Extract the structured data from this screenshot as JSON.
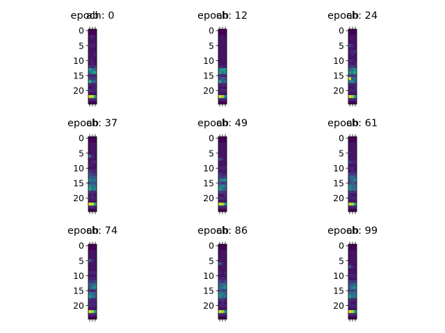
{
  "chart_data": {
    "type": "heatmap",
    "colormap": "viridis",
    "value_range": [
      0,
      1
    ],
    "grid": false,
    "y_ticks": [
      "0",
      "5",
      "10",
      "15",
      "20"
    ],
    "x_tick_count": 3,
    "rows": 25,
    "cols": 3,
    "overlay_label": "ab",
    "panels": [
      {
        "title": "epoch: 0",
        "cells": [
          [
            0,
            0,
            0
          ],
          [
            0,
            0,
            0
          ],
          [
            0.08,
            0.1,
            0.05
          ],
          [
            0.05,
            0.05,
            0.05
          ],
          [
            0.05,
            0.05,
            0.05
          ],
          [
            0.1,
            0.1,
            0.08
          ],
          [
            0.05,
            0.05,
            0.05
          ],
          [
            0.05,
            0.05,
            0.05
          ],
          [
            0.08,
            0.05,
            0.1
          ],
          [
            0.05,
            0.05,
            0.05
          ],
          [
            0.1,
            0.08,
            0.05
          ],
          [
            0.05,
            0.1,
            0.05
          ],
          [
            0.15,
            0.1,
            0.15
          ],
          [
            0.55,
            0.35,
            0.35
          ],
          [
            0.35,
            0.5,
            0.6
          ],
          [
            0.1,
            0.1,
            0.1
          ],
          [
            0.2,
            0.15,
            0.2
          ],
          [
            0.65,
            0.3,
            0.3
          ],
          [
            0.1,
            0.1,
            0.1
          ],
          [
            0.05,
            0.05,
            0.1
          ],
          [
            0.15,
            0.1,
            0.1
          ],
          [
            0.05,
            0.05,
            0.05
          ],
          [
            0.95,
            0.9,
            0.6
          ],
          [
            0.1,
            0.1,
            0.1
          ],
          [
            0,
            0,
            0
          ]
        ]
      },
      {
        "title": "epoch: 12",
        "cells": [
          [
            0,
            0,
            0
          ],
          [
            0,
            0,
            0
          ],
          [
            0.05,
            0.05,
            0.05
          ],
          [
            0.05,
            0.05,
            0.05
          ],
          [
            0.05,
            0.05,
            0.05
          ],
          [
            0.05,
            0.05,
            0.05
          ],
          [
            0.05,
            0.05,
            0.05
          ],
          [
            0.05,
            0.05,
            0.05
          ],
          [
            0.05,
            0.05,
            0.05
          ],
          [
            0.05,
            0.05,
            0.05
          ],
          [
            0.05,
            0.05,
            0.05
          ],
          [
            0.05,
            0.05,
            0.05
          ],
          [
            0.1,
            0.1,
            0.1
          ],
          [
            0.45,
            0.55,
            0.55
          ],
          [
            0.55,
            0.4,
            0.5
          ],
          [
            0.15,
            0.1,
            0.1
          ],
          [
            0.2,
            0.3,
            0.25
          ],
          [
            0.6,
            0.3,
            0.35
          ],
          [
            0.1,
            0.1,
            0.1
          ],
          [
            0.05,
            0.05,
            0.05
          ],
          [
            0.1,
            0.1,
            0.1
          ],
          [
            0.05,
            0.05,
            0.05
          ],
          [
            0.95,
            0.85,
            0.55
          ],
          [
            0.1,
            0.1,
            0.1
          ],
          [
            0,
            0,
            0
          ]
        ]
      },
      {
        "title": "epoch: 24",
        "cells": [
          [
            0,
            0,
            0
          ],
          [
            0,
            0,
            0
          ],
          [
            0.05,
            0.05,
            0.05
          ],
          [
            0.05,
            0.05,
            0.05
          ],
          [
            0.05,
            0.05,
            0.05
          ],
          [
            0.2,
            0.1,
            0.05
          ],
          [
            0.05,
            0.05,
            0.05
          ],
          [
            0.1,
            0.1,
            0.15
          ],
          [
            0.05,
            0.1,
            0.05
          ],
          [
            0.05,
            0.05,
            0.05
          ],
          [
            0.1,
            0.1,
            0.05
          ],
          [
            0.1,
            0.05,
            0.1
          ],
          [
            0.15,
            0.2,
            0.15
          ],
          [
            0.3,
            0.4,
            0.5
          ],
          [
            0.55,
            0.45,
            0.6
          ],
          [
            0.2,
            0.15,
            0.2
          ],
          [
            0.95,
            0.3,
            0.35
          ],
          [
            0.4,
            0.45,
            0.3
          ],
          [
            0.1,
            0.1,
            0.1
          ],
          [
            0.05,
            0.05,
            0.1
          ],
          [
            0.1,
            0.1,
            0.1
          ],
          [
            0.05,
            0.05,
            0.05
          ],
          [
            0.95,
            0.85,
            0.55
          ],
          [
            0.1,
            0.1,
            0.1
          ],
          [
            0,
            0,
            0
          ]
        ]
      },
      {
        "title": "epoch: 37",
        "cells": [
          [
            0,
            0,
            0
          ],
          [
            0,
            0,
            0
          ],
          [
            0.05,
            0.05,
            0.05
          ],
          [
            0.05,
            0.05,
            0.05
          ],
          [
            0.05,
            0.05,
            0.05
          ],
          [
            0.05,
            0.05,
            0.05
          ],
          [
            0.35,
            0.1,
            0.05
          ],
          [
            0.05,
            0.05,
            0.05
          ],
          [
            0.05,
            0.1,
            0.1
          ],
          [
            0.1,
            0.05,
            0.05
          ],
          [
            0.05,
            0.05,
            0.05
          ],
          [
            0.15,
            0.1,
            0.1
          ],
          [
            0.25,
            0.15,
            0.15
          ],
          [
            0.3,
            0.25,
            0.3
          ],
          [
            0.45,
            0.35,
            0.4
          ],
          [
            0.2,
            0.3,
            0.25
          ],
          [
            0.5,
            0.35,
            0.4
          ],
          [
            0.6,
            0.4,
            0.45
          ],
          [
            0.15,
            0.1,
            0.1
          ],
          [
            0.05,
            0.1,
            0.05
          ],
          [
            0.1,
            0.1,
            0.1
          ],
          [
            0.05,
            0.05,
            0.05
          ],
          [
            0.95,
            0.9,
            0.6
          ],
          [
            0.1,
            0.1,
            0.1
          ],
          [
            0,
            0,
            0
          ]
        ]
      },
      {
        "title": "epoch: 49",
        "cells": [
          [
            0,
            0,
            0
          ],
          [
            0,
            0,
            0
          ],
          [
            0.05,
            0.05,
            0.05
          ],
          [
            0.05,
            0.05,
            0.05
          ],
          [
            0.05,
            0.05,
            0.05
          ],
          [
            0.05,
            0.05,
            0.05
          ],
          [
            0.05,
            0.05,
            0.05
          ],
          [
            0.25,
            0.1,
            0.05
          ],
          [
            0.05,
            0.05,
            0.05
          ],
          [
            0.05,
            0.05,
            0.05
          ],
          [
            0.1,
            0.1,
            0.1
          ],
          [
            0.05,
            0.05,
            0.05
          ],
          [
            0.15,
            0.1,
            0.1
          ],
          [
            0.2,
            0.15,
            0.2
          ],
          [
            0.35,
            0.45,
            0.5
          ],
          [
            0.25,
            0.15,
            0.2
          ],
          [
            0.4,
            0.45,
            0.35
          ],
          [
            0.55,
            0.35,
            0.3
          ],
          [
            0.2,
            0.15,
            0.15
          ],
          [
            0.05,
            0.05,
            0.1
          ],
          [
            0.15,
            0.1,
            0.1
          ],
          [
            0.05,
            0.05,
            0.05
          ],
          [
            0.95,
            0.85,
            0.6
          ],
          [
            0.1,
            0.1,
            0.1
          ],
          [
            0,
            0,
            0
          ]
        ]
      },
      {
        "title": "epoch: 61",
        "cells": [
          [
            0,
            0,
            0
          ],
          [
            0,
            0,
            0
          ],
          [
            0.05,
            0.05,
            0.05
          ],
          [
            0.05,
            0.05,
            0.05
          ],
          [
            0.05,
            0.05,
            0.05
          ],
          [
            0.1,
            0.05,
            0.05
          ],
          [
            0.05,
            0.05,
            0.05
          ],
          [
            0.05,
            0.05,
            0.05
          ],
          [
            0.2,
            0.1,
            0.1
          ],
          [
            0.05,
            0.05,
            0.05
          ],
          [
            0.1,
            0.1,
            0.05
          ],
          [
            0.05,
            0.1,
            0.05
          ],
          [
            0.2,
            0.15,
            0.2
          ],
          [
            0.3,
            0.35,
            0.3
          ],
          [
            0.25,
            0.35,
            0.45
          ],
          [
            0.2,
            0.3,
            0.2
          ],
          [
            0.45,
            0.3,
            0.35
          ],
          [
            0.5,
            0.35,
            0.4
          ],
          [
            0.15,
            0.1,
            0.15
          ],
          [
            0.1,
            0.05,
            0.05
          ],
          [
            0.1,
            0.1,
            0.1
          ],
          [
            0.05,
            0.05,
            0.05
          ],
          [
            0.9,
            0.85,
            0.55
          ],
          [
            0.1,
            0.1,
            0.1
          ],
          [
            0,
            0,
            0
          ]
        ]
      },
      {
        "title": "epoch: 74",
        "cells": [
          [
            0,
            0,
            0
          ],
          [
            0,
            0,
            0
          ],
          [
            0.05,
            0.05,
            0.05
          ],
          [
            0.05,
            0.05,
            0.05
          ],
          [
            0.05,
            0.05,
            0.05
          ],
          [
            0.3,
            0.1,
            0.05
          ],
          [
            0.05,
            0.05,
            0.05
          ],
          [
            0.05,
            0.05,
            0.05
          ],
          [
            0.05,
            0.05,
            0.05
          ],
          [
            0.1,
            0.1,
            0.1
          ],
          [
            0.05,
            0.05,
            0.05
          ],
          [
            0.1,
            0.1,
            0.1
          ],
          [
            0.2,
            0.15,
            0.2
          ],
          [
            0.3,
            0.3,
            0.4
          ],
          [
            0.25,
            0.45,
            0.5
          ],
          [
            0.15,
            0.1,
            0.15
          ],
          [
            0.4,
            0.35,
            0.3
          ],
          [
            0.55,
            0.4,
            0.35
          ],
          [
            0.15,
            0.1,
            0.1
          ],
          [
            0.1,
            0.1,
            0.1
          ],
          [
            0.15,
            0.1,
            0.1
          ],
          [
            0.05,
            0.05,
            0.05
          ],
          [
            0.95,
            0.85,
            0.55
          ],
          [
            0.1,
            0.1,
            0.1
          ],
          [
            0,
            0,
            0
          ]
        ]
      },
      {
        "title": "epoch: 86",
        "cells": [
          [
            0,
            0,
            0
          ],
          [
            0,
            0,
            0
          ],
          [
            0.05,
            0.05,
            0.05
          ],
          [
            0.05,
            0.05,
            0.05
          ],
          [
            0.05,
            0.05,
            0.05
          ],
          [
            0.05,
            0.05,
            0.05
          ],
          [
            0.3,
            0.1,
            0.05
          ],
          [
            0.05,
            0.05,
            0.05
          ],
          [
            0.05,
            0.05,
            0.05
          ],
          [
            0.1,
            0.05,
            0.1
          ],
          [
            0.05,
            0.05,
            0.05
          ],
          [
            0.1,
            0.1,
            0.1
          ],
          [
            0.2,
            0.15,
            0.2
          ],
          [
            0.3,
            0.35,
            0.4
          ],
          [
            0.35,
            0.4,
            0.5
          ],
          [
            0.25,
            0.2,
            0.2
          ],
          [
            0.45,
            0.4,
            0.35
          ],
          [
            0.5,
            0.35,
            0.4
          ],
          [
            0.15,
            0.15,
            0.1
          ],
          [
            0.05,
            0.1,
            0.05
          ],
          [
            0.1,
            0.1,
            0.1
          ],
          [
            0.05,
            0.05,
            0.05
          ],
          [
            0.95,
            0.85,
            0.6
          ],
          [
            0.1,
            0.1,
            0.1
          ],
          [
            0,
            0,
            0
          ]
        ]
      },
      {
        "title": "epoch: 99",
        "cells": [
          [
            0,
            0,
            0
          ],
          [
            0,
            0,
            0
          ],
          [
            0.05,
            0.05,
            0.05
          ],
          [
            0.05,
            0.05,
            0.05
          ],
          [
            0.05,
            0.05,
            0.05
          ],
          [
            0.05,
            0.05,
            0.05
          ],
          [
            0.05,
            0.05,
            0.05
          ],
          [
            0.3,
            0.1,
            0.05
          ],
          [
            0.05,
            0.05,
            0.05
          ],
          [
            0.05,
            0.05,
            0.05
          ],
          [
            0.1,
            0.1,
            0.1
          ],
          [
            0.05,
            0.05,
            0.05
          ],
          [
            0.2,
            0.15,
            0.2
          ],
          [
            0.25,
            0.3,
            0.35
          ],
          [
            0.3,
            0.45,
            0.5
          ],
          [
            0.2,
            0.2,
            0.25
          ],
          [
            0.4,
            0.35,
            0.4
          ],
          [
            0.55,
            0.4,
            0.45
          ],
          [
            0.15,
            0.1,
            0.1
          ],
          [
            0.1,
            0.05,
            0.05
          ],
          [
            0.1,
            0.1,
            0.1
          ],
          [
            0.05,
            0.05,
            0.05
          ],
          [
            0.95,
            0.85,
            0.55
          ],
          [
            0.1,
            0.1,
            0.1
          ],
          [
            0,
            0,
            0
          ]
        ]
      }
    ]
  }
}
